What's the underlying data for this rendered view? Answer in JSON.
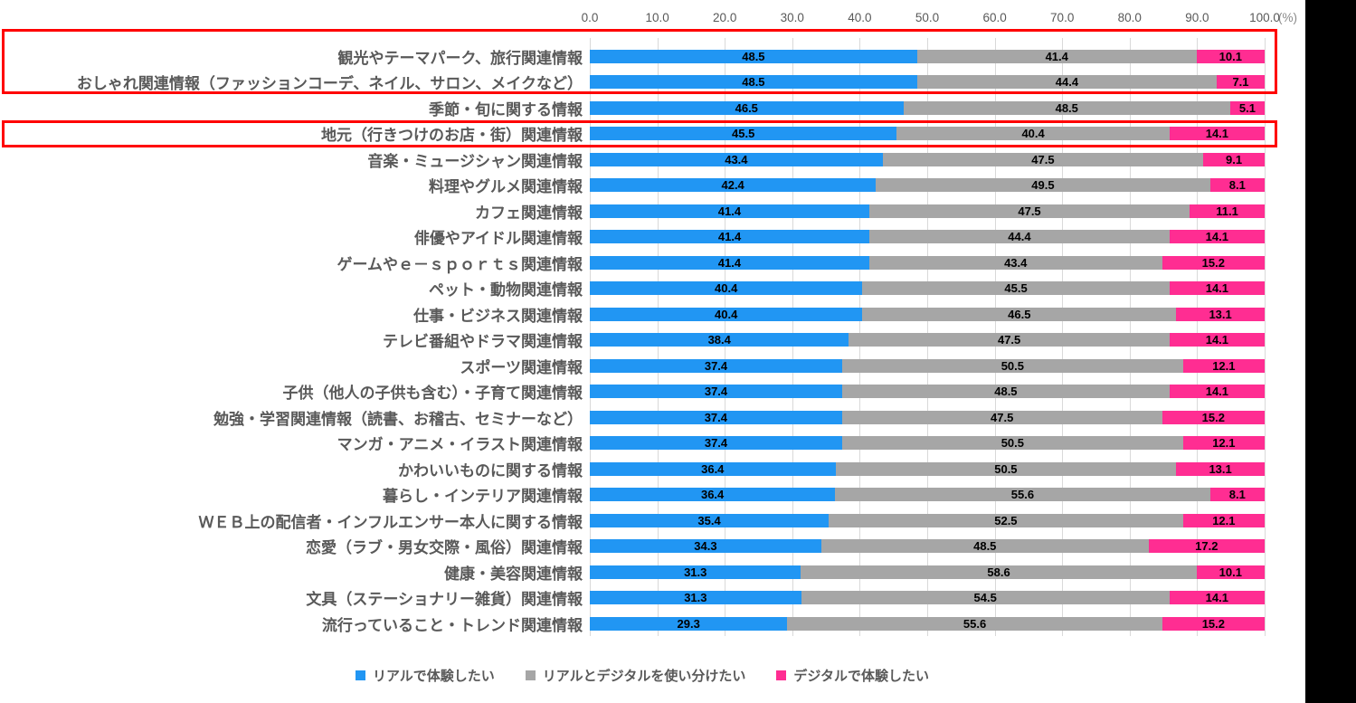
{
  "chart_data": {
    "type": "bar",
    "subtype": "horizontal-100pct-stacked",
    "title": "",
    "xlabel": "",
    "ylabel": "",
    "legend_position": "bottom",
    "grid": true,
    "axis": {
      "ticks": [
        "0.0",
        "10.0",
        "20.0",
        "30.0",
        "40.0",
        "50.0",
        "60.0",
        "70.0",
        "80.0",
        "90.0",
        "100.0"
      ],
      "unit": "(%)",
      "range": [
        0,
        100
      ]
    },
    "categories": [
      "観光やテーマパーク、旅行関連情報",
      "おしゃれ関連情報（ファッションコーデ、ネイル、サロン、メイクなど）",
      "季節・旬に関する情報",
      "地元（行きつけのお店・街）関連情報",
      "音楽・ミュージシャン関連情報",
      "料理やグルメ関連情報",
      "カフェ関連情報",
      "俳優やアイドル関連情報",
      "ゲームやｅ－ｓｐｏｒｔｓ関連情報",
      "ペット・動物関連情報",
      "仕事・ビジネス関連情報",
      "テレビ番組やドラマ関連情報",
      "スポーツ関連情報",
      "子供（他人の子供も含む）・子育て関連情報",
      "勉強・学習関連情報（読書、お稽古、セミナーなど）",
      "マンガ・アニメ・イラスト関連情報",
      "かわいいものに関する情報",
      "暮らし・インテリア関連情報",
      "ＷＥＢ上の配信者・インフルエンサー本人に関する情報",
      "恋愛（ラブ・男女交際・風俗）関連情報",
      "健康・美容関連情報",
      "文具（ステーショナリー雑貨）関連情報",
      "流行っていること・トレンド関連情報"
    ],
    "series": [
      {
        "name": "リアルで体験したい",
        "color": "#2196f3",
        "values": [
          48.5,
          48.5,
          46.5,
          45.5,
          43.4,
          42.4,
          41.4,
          41.4,
          41.4,
          40.4,
          40.4,
          38.4,
          37.4,
          37.4,
          37.4,
          37.4,
          36.4,
          36.4,
          35.4,
          34.3,
          31.3,
          31.3,
          29.3
        ]
      },
      {
        "name": "リアルとデジタルを使い分けたい",
        "color": "#a6a6a6",
        "values": [
          41.4,
          44.4,
          48.5,
          40.4,
          47.5,
          49.5,
          47.5,
          44.4,
          43.4,
          45.5,
          46.5,
          47.5,
          50.5,
          48.5,
          47.5,
          50.5,
          50.5,
          55.6,
          52.5,
          48.5,
          58.6,
          54.5,
          55.6
        ]
      },
      {
        "name": "デジタルで体験したい",
        "color": "#ff2d92",
        "values": [
          10.1,
          7.1,
          5.1,
          14.1,
          9.1,
          8.1,
          11.1,
          14.1,
          15.2,
          14.1,
          13.1,
          14.1,
          12.1,
          14.1,
          15.2,
          12.1,
          13.1,
          8.1,
          12.1,
          17.2,
          10.1,
          14.1,
          15.2
        ]
      }
    ],
    "annotations": {
      "highlight_color": "#ff0000",
      "highlighted_category_indexes": [
        [
          0,
          1
        ],
        [
          3
        ]
      ]
    }
  }
}
